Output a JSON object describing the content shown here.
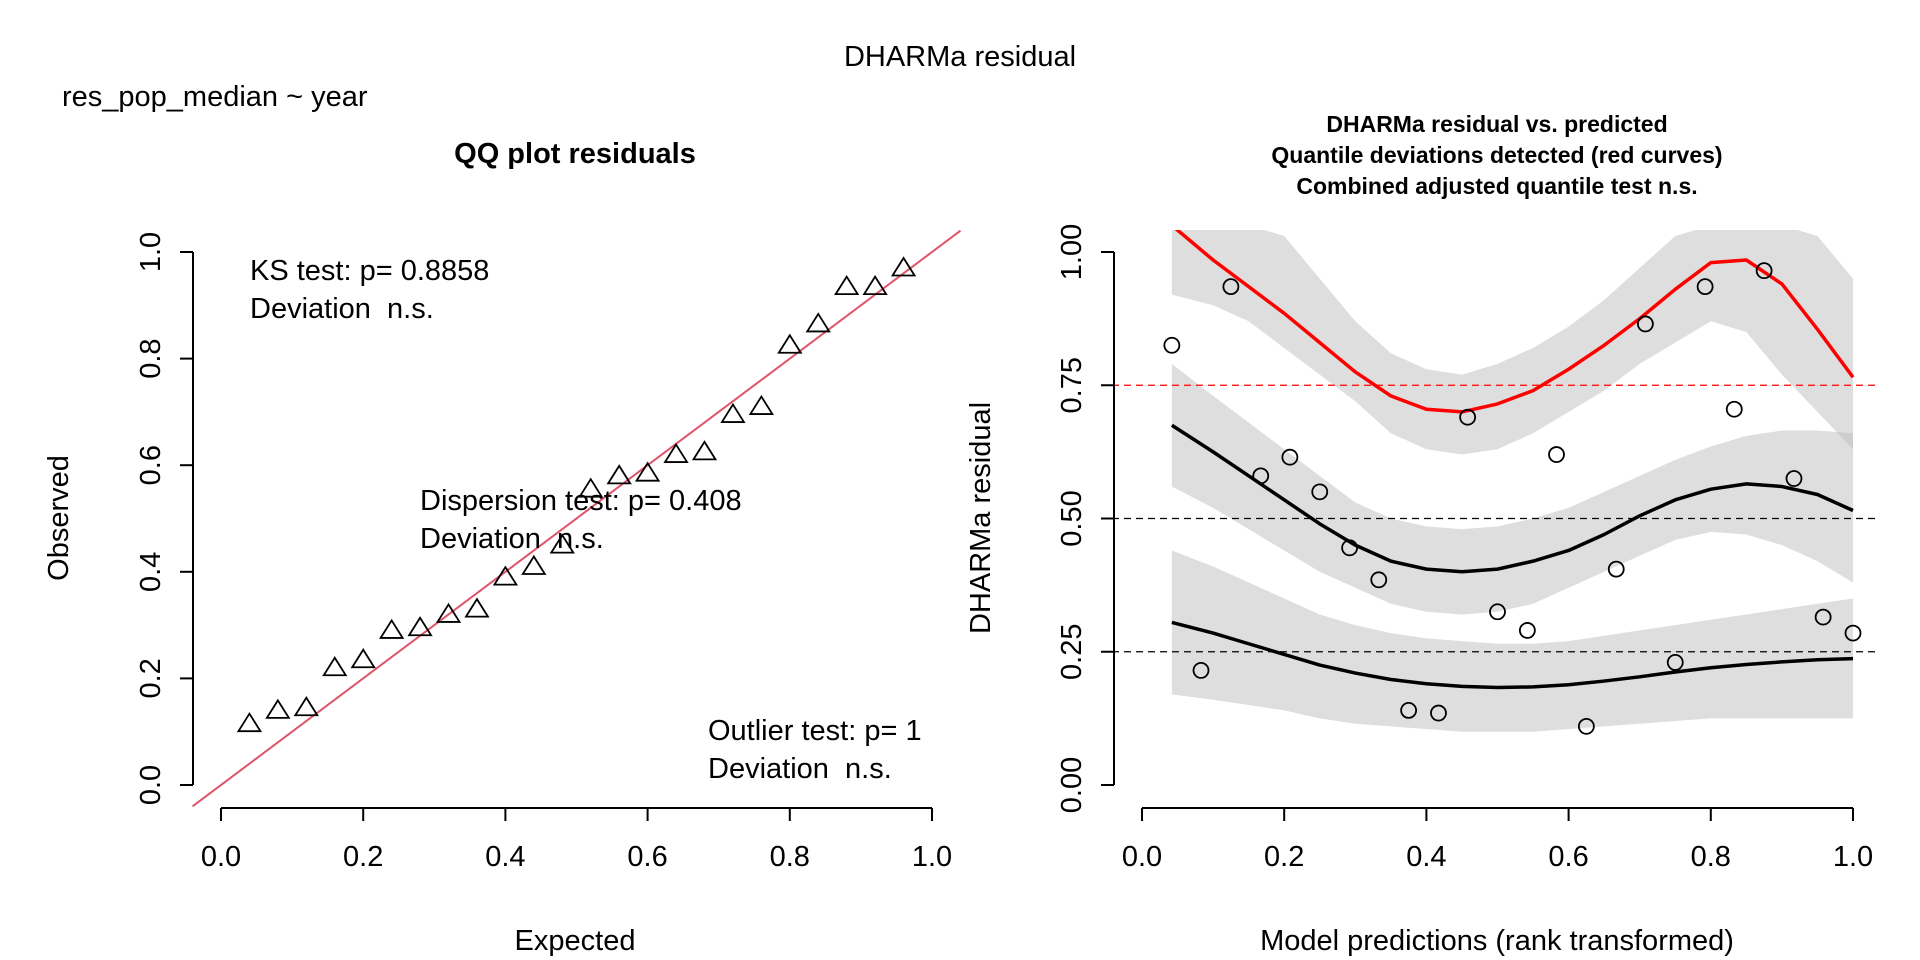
{
  "figure": {
    "title": "DHARMa residual",
    "subtitle": "res_pop_median ~ year"
  },
  "chart_data": [
    {
      "type": "scatter",
      "title": "QQ plot residuals",
      "xlabel": "Expected",
      "ylabel": "Observed",
      "xlim": [
        0,
        1
      ],
      "ylim": [
        0,
        1
      ],
      "xticks": [
        "0.0",
        "0.2",
        "0.4",
        "0.6",
        "0.8",
        "1.0"
      ],
      "yticks": [
        "0.0",
        "0.2",
        "0.4",
        "0.6",
        "0.8",
        "1.0"
      ],
      "marker": "triangle",
      "reference_line": {
        "slope": 1,
        "intercept": 0,
        "color": "#DF536B"
      },
      "points": [
        [
          0.04,
          0.115
        ],
        [
          0.08,
          0.14
        ],
        [
          0.12,
          0.145
        ],
        [
          0.16,
          0.22
        ],
        [
          0.2,
          0.235
        ],
        [
          0.24,
          0.29
        ],
        [
          0.28,
          0.295
        ],
        [
          0.32,
          0.32
        ],
        [
          0.36,
          0.33
        ],
        [
          0.4,
          0.39
        ],
        [
          0.44,
          0.41
        ],
        [
          0.48,
          0.45
        ],
        [
          0.52,
          0.555
        ],
        [
          0.56,
          0.58
        ],
        [
          0.6,
          0.585
        ],
        [
          0.64,
          0.62
        ],
        [
          0.68,
          0.625
        ],
        [
          0.72,
          0.695
        ],
        [
          0.76,
          0.71
        ],
        [
          0.8,
          0.825
        ],
        [
          0.84,
          0.865
        ],
        [
          0.88,
          0.935
        ],
        [
          0.92,
          0.935
        ],
        [
          0.96,
          0.97
        ]
      ],
      "annotations": [
        {
          "line1": "KS test: p= 0.8858",
          "line2": "Deviation  n.s."
        },
        {
          "line1": "Dispersion test: p= 0.408",
          "line2": "Deviation  n.s."
        },
        {
          "line1": "Outlier test: p= 1",
          "line2": "Deviation  n.s."
        }
      ]
    },
    {
      "type": "scatter",
      "title_lines": [
        "DHARMa residual vs. predicted",
        "Quantile deviations detected (red curves)",
        "Combined adjusted quantile test n.s."
      ],
      "title_color": "#FF0000",
      "xlabel": "Model predictions (rank transformed)",
      "ylabel": "DHARMa residual",
      "xlim": [
        0,
        1
      ],
      "ylim": [
        0,
        1
      ],
      "xticks": [
        "0.0",
        "0.2",
        "0.4",
        "0.6",
        "0.8",
        "1.0"
      ],
      "yticks": [
        "0.00",
        "0.25",
        "0.50",
        "0.75",
        "1.00"
      ],
      "marker": "circle",
      "reference_lines": [
        {
          "y": 0.25,
          "color": "#000000"
        },
        {
          "y": 0.5,
          "color": "#000000"
        },
        {
          "y": 0.75,
          "color": "#FF0000"
        }
      ],
      "points": [
        [
          0.042,
          0.825
        ],
        [
          0.083,
          0.215
        ],
        [
          0.125,
          0.935
        ],
        [
          0.167,
          0.58
        ],
        [
          0.208,
          0.615
        ],
        [
          0.25,
          0.55
        ],
        [
          0.292,
          0.445
        ],
        [
          0.333,
          0.385
        ],
        [
          0.375,
          0.14
        ],
        [
          0.417,
          0.135
        ],
        [
          0.458,
          0.69
        ],
        [
          0.5,
          0.325
        ],
        [
          0.542,
          0.29
        ],
        [
          0.583,
          0.62
        ],
        [
          0.625,
          0.11
        ],
        [
          0.667,
          0.405
        ],
        [
          0.708,
          0.865
        ],
        [
          0.75,
          0.23
        ],
        [
          0.792,
          0.935
        ],
        [
          0.833,
          0.705
        ],
        [
          0.875,
          0.965
        ],
        [
          0.917,
          0.575
        ],
        [
          0.958,
          0.315
        ],
        [
          1.0,
          0.285
        ]
      ],
      "quantile_curves": [
        {
          "quantile": 0.75,
          "color": "#FF0000",
          "x": [
            0.042,
            0.1,
            0.15,
            0.2,
            0.25,
            0.3,
            0.35,
            0.4,
            0.45,
            0.5,
            0.55,
            0.6,
            0.65,
            0.7,
            0.75,
            0.8,
            0.85,
            0.9,
            0.95,
            1.0
          ],
          "y": [
            1.05,
            0.985,
            0.935,
            0.885,
            0.83,
            0.775,
            0.73,
            0.705,
            0.7,
            0.715,
            0.74,
            0.78,
            0.825,
            0.875,
            0.93,
            0.98,
            0.985,
            0.94,
            0.855,
            0.765
          ],
          "band_lo": [
            0.92,
            0.9,
            0.87,
            0.82,
            0.77,
            0.72,
            0.66,
            0.63,
            0.62,
            0.63,
            0.66,
            0.7,
            0.74,
            0.79,
            0.83,
            0.87,
            0.85,
            0.77,
            0.7,
            0.63
          ],
          "band_hi": [
            1.05,
            1.05,
            1.05,
            1.03,
            0.95,
            0.87,
            0.81,
            0.78,
            0.77,
            0.79,
            0.82,
            0.86,
            0.91,
            0.97,
            1.03,
            1.05,
            1.05,
            1.05,
            1.03,
            0.95
          ]
        },
        {
          "quantile": 0.5,
          "color": "#000000",
          "x": [
            0.042,
            0.1,
            0.15,
            0.2,
            0.25,
            0.3,
            0.35,
            0.4,
            0.45,
            0.5,
            0.55,
            0.6,
            0.65,
            0.7,
            0.75,
            0.8,
            0.85,
            0.9,
            0.95,
            1.0
          ],
          "y": [
            0.675,
            0.625,
            0.58,
            0.535,
            0.49,
            0.45,
            0.42,
            0.405,
            0.4,
            0.405,
            0.42,
            0.44,
            0.47,
            0.505,
            0.535,
            0.555,
            0.565,
            0.56,
            0.545,
            0.515
          ],
          "band_lo": [
            0.56,
            0.52,
            0.48,
            0.44,
            0.4,
            0.37,
            0.34,
            0.325,
            0.32,
            0.325,
            0.34,
            0.37,
            0.4,
            0.43,
            0.46,
            0.475,
            0.47,
            0.45,
            0.42,
            0.38
          ],
          "band_hi": [
            0.79,
            0.73,
            0.68,
            0.63,
            0.58,
            0.53,
            0.5,
            0.485,
            0.48,
            0.485,
            0.5,
            0.52,
            0.55,
            0.58,
            0.61,
            0.635,
            0.655,
            0.665,
            0.665,
            0.66
          ]
        },
        {
          "quantile": 0.25,
          "color": "#000000",
          "x": [
            0.042,
            0.1,
            0.15,
            0.2,
            0.25,
            0.3,
            0.35,
            0.4,
            0.45,
            0.5,
            0.55,
            0.6,
            0.65,
            0.7,
            0.75,
            0.8,
            0.85,
            0.9,
            0.95,
            1.0
          ],
          "y": [
            0.305,
            0.285,
            0.265,
            0.245,
            0.225,
            0.21,
            0.198,
            0.19,
            0.185,
            0.183,
            0.184,
            0.188,
            0.195,
            0.203,
            0.212,
            0.22,
            0.226,
            0.231,
            0.235,
            0.237
          ],
          "band_lo": [
            0.17,
            0.16,
            0.15,
            0.14,
            0.125,
            0.115,
            0.11,
            0.105,
            0.1,
            0.1,
            0.1,
            0.105,
            0.11,
            0.115,
            0.12,
            0.125,
            0.125,
            0.125,
            0.125,
            0.125
          ],
          "band_hi": [
            0.44,
            0.41,
            0.38,
            0.35,
            0.32,
            0.3,
            0.285,
            0.275,
            0.27,
            0.265,
            0.265,
            0.27,
            0.28,
            0.29,
            0.3,
            0.31,
            0.32,
            0.33,
            0.34,
            0.35
          ]
        }
      ]
    }
  ]
}
